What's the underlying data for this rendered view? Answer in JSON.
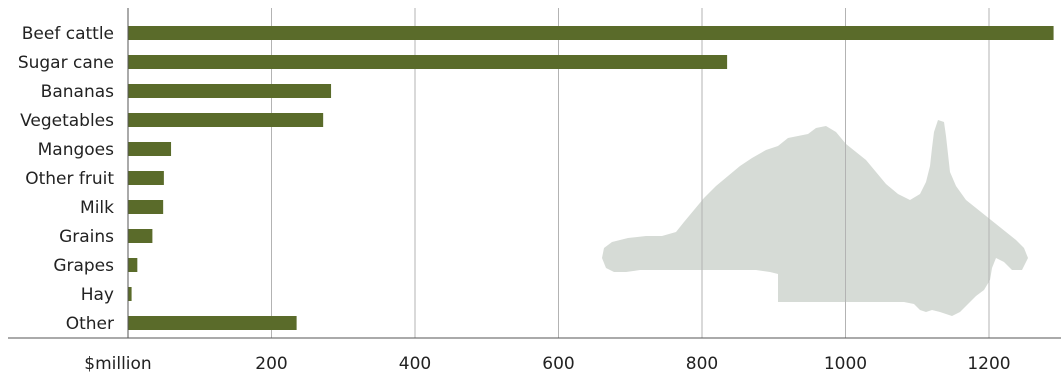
{
  "chart_data": {
    "type": "bar",
    "orientation": "horizontal",
    "categories": [
      "Beef cattle",
      "Sugar cane",
      "Bananas",
      "Vegetables",
      "Mangoes",
      "Other fruit",
      "Milk",
      "Grains",
      "Grapes",
      "Hay",
      "Other"
    ],
    "values": [
      1290,
      835,
      283,
      272,
      60,
      50,
      49,
      34,
      13,
      5,
      235
    ],
    "title": "",
    "xlabel": "$million",
    "ylabel": "",
    "xlim": [
      0,
      1300
    ],
    "xticks": [
      200,
      400,
      600,
      800,
      1000,
      1200
    ],
    "xtick_labels": [
      "200",
      "400",
      "600",
      "800",
      "1000",
      "1200"
    ],
    "grid": "vertical",
    "legend": "none",
    "bar_color": "#5a6b2a",
    "background_map_color": "#d6dbd6"
  }
}
